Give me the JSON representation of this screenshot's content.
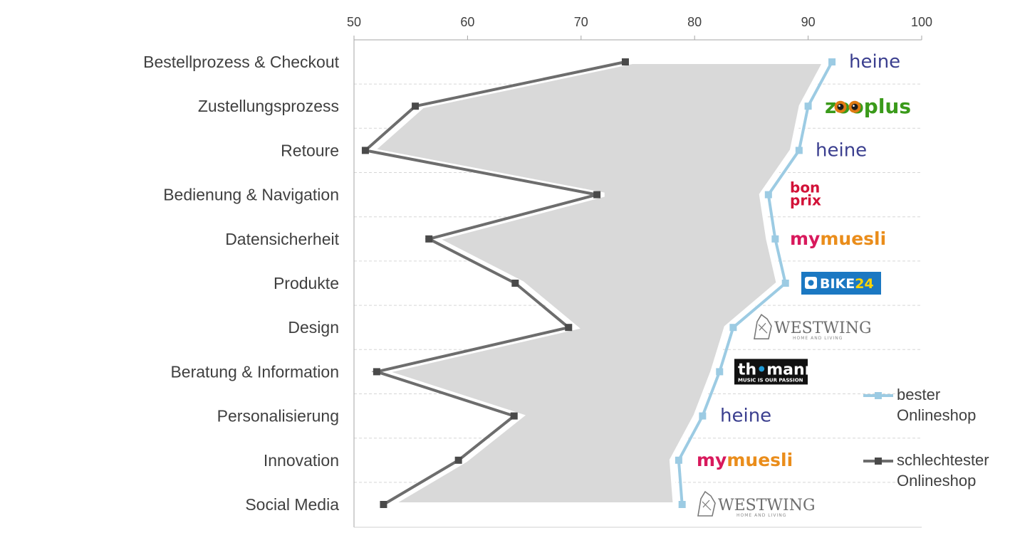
{
  "chart_data": {
    "type": "line",
    "orientation": "horizontal",
    "xlim": [
      50,
      100
    ],
    "ticks": [
      "50",
      "60",
      "70",
      "80",
      "90",
      "100"
    ],
    "tick_values": [
      50,
      60,
      70,
      80,
      90,
      100
    ],
    "categories": [
      "Bestellprozess & Checkout",
      "Zustellungsprozess",
      "Retoure",
      "Bedienung & Navigation",
      "Datensicherheit",
      "Produkte",
      "Design",
      "Beratung & Information",
      "Personalisierung",
      "Innovation",
      "Social Media"
    ],
    "series": [
      {
        "name": "bester Onlineshop",
        "color": "#9ccbe3",
        "values": [
          92.1,
          90.0,
          89.2,
          86.5,
          87.1,
          88.0,
          83.4,
          82.2,
          80.7,
          78.6,
          78.9
        ]
      },
      {
        "name": "schlechtester Onlineshop",
        "color": "#6d6d6d",
        "values": [
          73.9,
          55.4,
          51.0,
          71.4,
          56.6,
          64.2,
          68.9,
          52.0,
          64.1,
          59.2,
          52.6
        ]
      }
    ],
    "best_shop_logos": [
      {
        "icon": "heine-logo",
        "text": "heine"
      },
      {
        "icon": "zooplus-logo",
        "text": "zooplus"
      },
      {
        "icon": "heine-logo",
        "text": "heine"
      },
      {
        "icon": "bonprix-logo",
        "text": "bon prix"
      },
      {
        "icon": "mymuesli-logo",
        "text": "mymuesli"
      },
      {
        "icon": "bike24-logo",
        "text": "BIKE24"
      },
      {
        "icon": "westwing-logo",
        "text": "WESTWING"
      },
      {
        "icon": "thomann-logo",
        "text": "thomann"
      },
      {
        "icon": "heine-logo",
        "text": "heine"
      },
      {
        "icon": "mymuesli-logo",
        "text": "mymuesli"
      },
      {
        "icon": "westwing-logo",
        "text": "WESTWING"
      }
    ],
    "fill_color": "#d9d9d9",
    "legend": {
      "placement": "right",
      "entries": [
        {
          "line1": "bester",
          "line2": "Onlineshop"
        },
        {
          "line1": "schlechtester",
          "line2": "Onlineshop"
        }
      ]
    },
    "grid": true
  }
}
